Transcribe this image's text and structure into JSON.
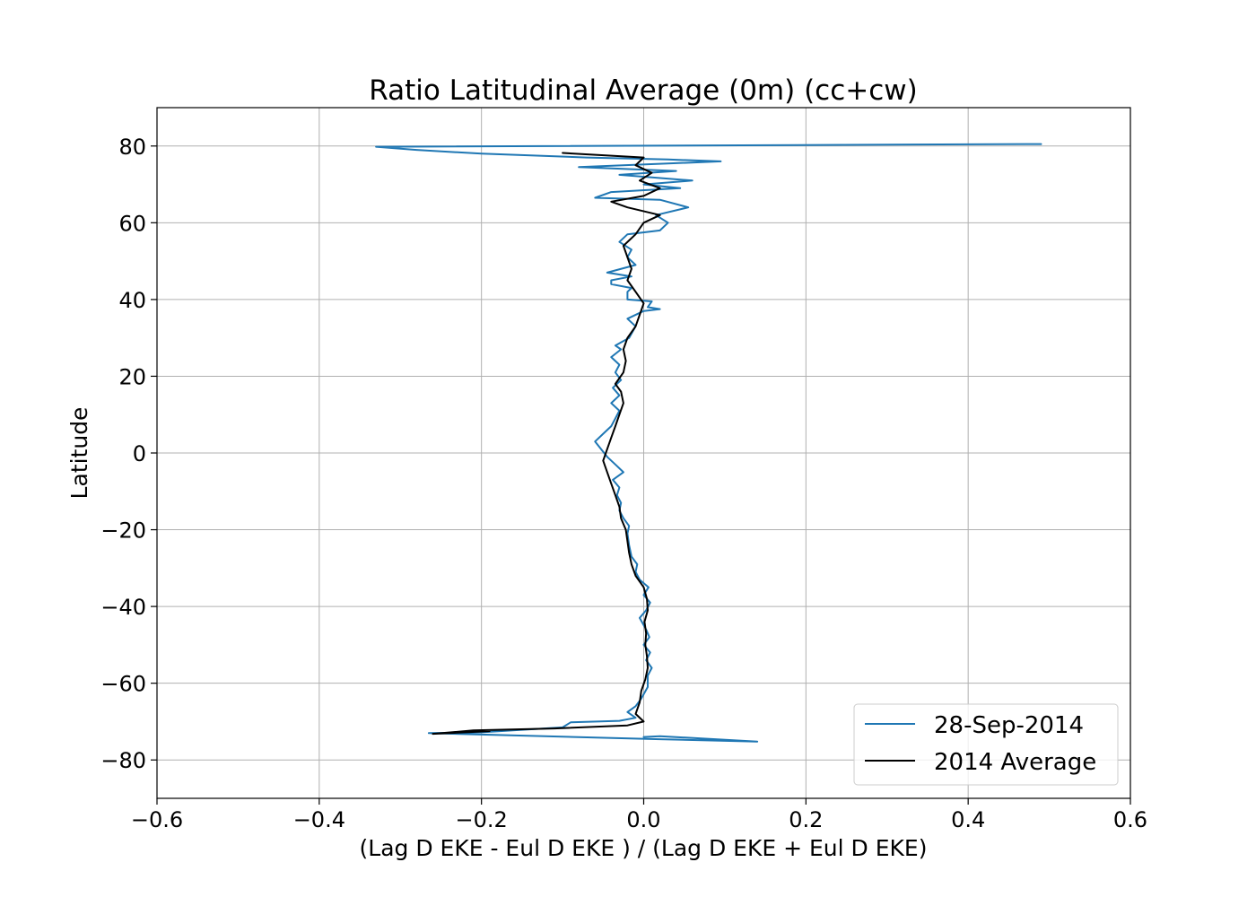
{
  "chart_data": {
    "type": "line",
    "title": "Ratio Latitudinal Average (0m) (cc+cw)",
    "xlabel": "(Lag D EKE - Eul D EKE ) / (Lag D EKE + Eul D EKE)",
    "ylabel": "Latitude",
    "xlim": [
      -0.6,
      0.6
    ],
    "ylim": [
      -90,
      90
    ],
    "xticks": [
      -0.6,
      -0.4,
      -0.2,
      0.0,
      0.2,
      0.4,
      0.6
    ],
    "xtick_labels": [
      "−0.6",
      "−0.4",
      "−0.2",
      "0.0",
      "0.2",
      "0.4",
      "0.6"
    ],
    "yticks": [
      -80,
      -60,
      -40,
      -20,
      0,
      20,
      40,
      60,
      80
    ],
    "ytick_labels": [
      "−80",
      "−60",
      "−40",
      "−20",
      "0",
      "20",
      "40",
      "60",
      "80"
    ],
    "grid": true,
    "legend_position": "lower-right",
    "series": [
      {
        "name": "28-Sep-2014",
        "color": "#1f77b4",
        "points": [
          [
            0.0,
            -74.0
          ],
          [
            0.02,
            -73.8
          ],
          [
            0.14,
            -75.2
          ],
          [
            0.02,
            -74.6
          ],
          [
            -0.265,
            -73.0
          ],
          [
            -0.2,
            -72.8
          ],
          [
            -0.1,
            -71.5
          ],
          [
            -0.09,
            -70.2
          ],
          [
            -0.03,
            -69.8
          ],
          [
            -0.01,
            -69.0
          ],
          [
            -0.02,
            -67.5
          ],
          [
            -0.01,
            -66.0
          ],
          [
            -0.003,
            -64.0
          ],
          [
            0.005,
            -61.0
          ],
          [
            0.005,
            -58.0
          ],
          [
            0.01,
            -56.0
          ],
          [
            0.003,
            -54.0
          ],
          [
            0.008,
            -52.0
          ],
          [
            0.0,
            -50.0
          ],
          [
            0.007,
            -48.0
          ],
          [
            0.003,
            -46.0
          ],
          [
            -0.005,
            -43.0
          ],
          [
            0.003,
            -41.0
          ],
          [
            0.008,
            -39.0
          ],
          [
            0.0,
            -37.0
          ],
          [
            0.006,
            -35.0
          ],
          [
            -0.005,
            -33.0
          ],
          [
            -0.01,
            -31.0
          ],
          [
            -0.008,
            -29.0
          ],
          [
            -0.015,
            -27.0
          ],
          [
            -0.018,
            -24.0
          ],
          [
            -0.02,
            -21.0
          ],
          [
            -0.018,
            -19.0
          ],
          [
            -0.025,
            -17.0
          ],
          [
            -0.03,
            -15.0
          ],
          [
            -0.028,
            -13.0
          ],
          [
            -0.033,
            -11.0
          ],
          [
            -0.03,
            -9.0
          ],
          [
            -0.038,
            -7.0
          ],
          [
            -0.025,
            -5.0
          ],
          [
            -0.035,
            -3.0
          ],
          [
            -0.045,
            -1.0
          ],
          [
            -0.06,
            3.0
          ],
          [
            -0.05,
            5.0
          ],
          [
            -0.04,
            7.0
          ],
          [
            -0.035,
            9.0
          ],
          [
            -0.03,
            11.0
          ],
          [
            -0.04,
            13.0
          ],
          [
            -0.03,
            15.0
          ],
          [
            -0.038,
            17.0
          ],
          [
            -0.028,
            19.0
          ],
          [
            -0.035,
            21.0
          ],
          [
            -0.03,
            23.0
          ],
          [
            -0.04,
            25.0
          ],
          [
            -0.028,
            27.0
          ],
          [
            -0.035,
            28.0
          ],
          [
            -0.018,
            30.0
          ],
          [
            -0.01,
            33.0
          ],
          [
            -0.02,
            35.0
          ],
          [
            0.0,
            37.0
          ],
          [
            0.02,
            37.5
          ],
          [
            0.005,
            38.0
          ],
          [
            0.01,
            39.5
          ],
          [
            -0.02,
            40.0
          ],
          [
            -0.02,
            42.0
          ],
          [
            -0.015,
            43.0
          ],
          [
            -0.04,
            44.0
          ],
          [
            -0.04,
            45.0
          ],
          [
            -0.015,
            46.0
          ],
          [
            -0.045,
            47.0
          ],
          [
            -0.01,
            49.0
          ],
          [
            -0.02,
            51.0
          ],
          [
            -0.015,
            53.0
          ],
          [
            -0.03,
            55.0
          ],
          [
            -0.02,
            57.0
          ],
          [
            0.02,
            58.0
          ],
          [
            0.03,
            60.0
          ],
          [
            0.015,
            62.0
          ],
          [
            0.055,
            64.0
          ],
          [
            0.02,
            66.0
          ],
          [
            -0.06,
            66.5
          ],
          [
            -0.04,
            68.0
          ],
          [
            0.045,
            69.0
          ],
          [
            0.0,
            70.0
          ],
          [
            0.06,
            71.0
          ],
          [
            -0.03,
            72.5
          ],
          [
            0.04,
            73.5
          ],
          [
            -0.08,
            74.5
          ],
          [
            0.095,
            76.0
          ],
          [
            0.03,
            76.5
          ],
          [
            -0.07,
            77.0
          ],
          [
            -0.2,
            78.0
          ],
          [
            -0.28,
            79.0
          ],
          [
            -0.33,
            79.8
          ],
          [
            0.49,
            80.5
          ]
        ]
      },
      {
        "name": "2014 Average",
        "color": "#000000",
        "points": [
          [
            -0.19,
            -72.5
          ],
          [
            -0.26,
            -73.2
          ],
          [
            -0.21,
            -72.3
          ],
          [
            -0.11,
            -71.8
          ],
          [
            -0.02,
            -71.0
          ],
          [
            0.0,
            -70.0
          ],
          [
            -0.01,
            -68.0
          ],
          [
            -0.005,
            -65.0
          ],
          [
            -0.003,
            -62.0
          ],
          [
            0.002,
            -59.0
          ],
          [
            0.005,
            -56.0
          ],
          [
            0.004,
            -53.0
          ],
          [
            0.002,
            -50.0
          ],
          [
            0.003,
            -47.0
          ],
          [
            0.001,
            -44.0
          ],
          [
            0.005,
            -41.0
          ],
          [
            0.004,
            -38.0
          ],
          [
            0.0,
            -35.0
          ],
          [
            -0.01,
            -32.0
          ],
          [
            -0.015,
            -29.0
          ],
          [
            -0.018,
            -26.0
          ],
          [
            -0.02,
            -23.0
          ],
          [
            -0.022,
            -20.0
          ],
          [
            -0.028,
            -17.0
          ],
          [
            -0.03,
            -14.0
          ],
          [
            -0.035,
            -11.0
          ],
          [
            -0.04,
            -8.0
          ],
          [
            -0.045,
            -5.0
          ],
          [
            -0.05,
            -2.0
          ],
          [
            -0.045,
            1.0
          ],
          [
            -0.04,
            4.0
          ],
          [
            -0.035,
            7.0
          ],
          [
            -0.03,
            10.0
          ],
          [
            -0.025,
            13.0
          ],
          [
            -0.028,
            16.0
          ],
          [
            -0.035,
            18.0
          ],
          [
            -0.025,
            21.0
          ],
          [
            -0.022,
            24.0
          ],
          [
            -0.025,
            27.0
          ],
          [
            -0.02,
            30.0
          ],
          [
            -0.01,
            33.0
          ],
          [
            -0.005,
            36.0
          ],
          [
            0.0,
            39.0
          ],
          [
            -0.01,
            42.0
          ],
          [
            -0.02,
            45.0
          ],
          [
            -0.015,
            48.0
          ],
          [
            -0.02,
            51.0
          ],
          [
            -0.025,
            54.0
          ],
          [
            -0.01,
            57.0
          ],
          [
            0.0,
            60.0
          ],
          [
            0.02,
            62.0
          ],
          [
            -0.02,
            64.0
          ],
          [
            -0.04,
            65.5
          ],
          [
            0.0,
            67.0
          ],
          [
            0.02,
            69.0
          ],
          [
            -0.005,
            71.0
          ],
          [
            0.01,
            73.0
          ],
          [
            -0.01,
            75.0
          ],
          [
            0.0,
            77.0
          ],
          [
            -0.1,
            78.2
          ]
        ]
      }
    ]
  }
}
